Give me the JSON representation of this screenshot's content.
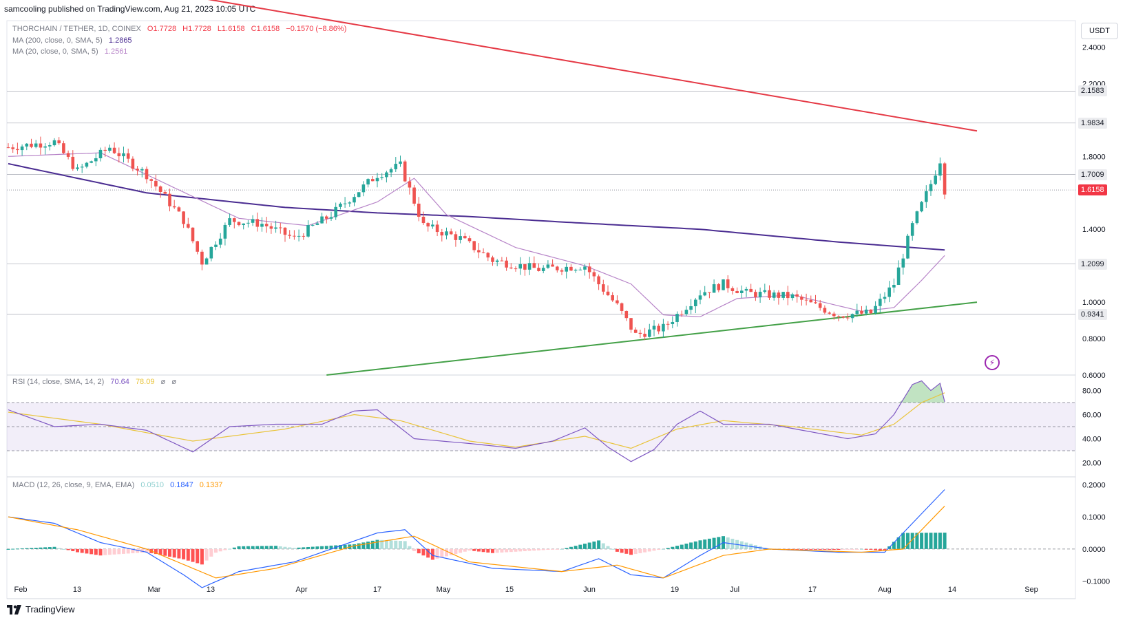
{
  "header": {
    "published_by": "samcooling published on TradingView.com, Aug 21, 2023 10:05 UTC"
  },
  "legend": {
    "symbol": "THORCHAIN / TETHER, 1D, COINEX",
    "ohlc": {
      "open": "O1.7728",
      "high": "H1.7728",
      "low": "L1.6158",
      "close": "C1.6158",
      "change": "−0.1570 (−8.86%)"
    },
    "ma200": {
      "label": "MA (200, close, 0, SMA, 5)",
      "value": "1.2865"
    },
    "ma20": {
      "label": "MA (20, close, 0, SMA, 5)",
      "value": "1.2561"
    }
  },
  "currency_button": "USDT",
  "price_axis": {
    "ticks": [
      "2.4000",
      "2.2000",
      "1.8000",
      "1.4000",
      "1.0000",
      "0.8000",
      "0.6000"
    ],
    "markers": [
      {
        "label": "2.1583",
        "style": "box"
      },
      {
        "label": "1.9834",
        "style": "box"
      },
      {
        "label": "1.7009",
        "style": "box"
      },
      {
        "label": "1.6158",
        "style": "current"
      },
      {
        "label": "1.2099",
        "style": "box"
      },
      {
        "label": "0.9341",
        "style": "box"
      }
    ]
  },
  "rsi": {
    "label": "RSI (14, close, SMA, 14, 2)",
    "value": "70.64",
    "sma": "78.09",
    "extra1": "ø",
    "extra2": "ø",
    "ticks": [
      "80.00",
      "60.00",
      "40.00",
      "20.00"
    ]
  },
  "macd": {
    "label": "MACD (12, 26, close, 9, EMA, EMA)",
    "hist": "0.0510",
    "macd": "0.1847",
    "signal": "0.1337",
    "ticks": [
      "0.2000",
      "0.1000",
      "0.0000",
      "−0.1000"
    ]
  },
  "time_axis": [
    "Feb",
    "13",
    "Mar",
    "13",
    "Apr",
    "17",
    "May",
    "15",
    "Jun",
    "19",
    "Jul",
    "17",
    "Aug",
    "14",
    "Sep"
  ],
  "footer": {
    "brand": "TradingView"
  },
  "colors": {
    "up": "#26a69a",
    "down": "#ef5350",
    "ma200": "#4a2c91",
    "ma20": "#b784c8",
    "resistance": "#e53945",
    "support": "#43a047"
  },
  "chart_data": {
    "type": "candlestick",
    "symbol": "THORCHAIN / TETHER",
    "interval": "1D",
    "x_range": [
      "2023-02-01",
      "2023-08-21"
    ],
    "y_range": [
      0.6,
      2.5
    ],
    "price_keypoints": [
      {
        "i": 0,
        "p": 1.85
      },
      {
        "i": 10,
        "p": 1.88
      },
      {
        "i": 15,
        "p": 1.72
      },
      {
        "i": 22,
        "p": 1.85
      },
      {
        "i": 30,
        "p": 1.7
      },
      {
        "i": 38,
        "p": 1.45
      },
      {
        "i": 42,
        "p": 1.22
      },
      {
        "i": 48,
        "p": 1.45
      },
      {
        "i": 55,
        "p": 1.43
      },
      {
        "i": 62,
        "p": 1.35
      },
      {
        "i": 70,
        "p": 1.48
      },
      {
        "i": 80,
        "p": 1.7
      },
      {
        "i": 85,
        "p": 1.75
      },
      {
        "i": 90,
        "p": 1.42
      },
      {
        "i": 98,
        "p": 1.35
      },
      {
        "i": 105,
        "p": 1.23
      },
      {
        "i": 115,
        "p": 1.18
      },
      {
        "i": 125,
        "p": 1.2
      },
      {
        "i": 128,
        "p": 1.1
      },
      {
        "i": 132,
        "p": 0.98
      },
      {
        "i": 136,
        "p": 0.82
      },
      {
        "i": 142,
        "p": 0.86
      },
      {
        "i": 150,
        "p": 1.05
      },
      {
        "i": 155,
        "p": 1.1
      },
      {
        "i": 160,
        "p": 1.05
      },
      {
        "i": 170,
        "p": 1.03
      },
      {
        "i": 180,
        "p": 0.93
      },
      {
        "i": 187,
        "p": 0.94
      },
      {
        "i": 192,
        "p": 1.1
      },
      {
        "i": 196,
        "p": 1.42
      },
      {
        "i": 200,
        "p": 1.65
      },
      {
        "i": 202,
        "p": 1.78
      },
      {
        "i": 203,
        "p": 1.6158
      }
    ],
    "ma200_keypoints": [
      {
        "i": 0,
        "p": 1.76
      },
      {
        "i": 30,
        "p": 1.6
      },
      {
        "i": 60,
        "p": 1.52
      },
      {
        "i": 80,
        "p": 1.49
      },
      {
        "i": 100,
        "p": 1.47
      },
      {
        "i": 120,
        "p": 1.44
      },
      {
        "i": 150,
        "p": 1.4
      },
      {
        "i": 180,
        "p": 1.33
      },
      {
        "i": 203,
        "p": 1.2865
      }
    ],
    "ma20_keypoints": [
      {
        "i": 0,
        "p": 1.8
      },
      {
        "i": 20,
        "p": 1.82
      },
      {
        "i": 30,
        "p": 1.7
      },
      {
        "i": 40,
        "p": 1.58
      },
      {
        "i": 50,
        "p": 1.46
      },
      {
        "i": 65,
        "p": 1.42
      },
      {
        "i": 80,
        "p": 1.55
      },
      {
        "i": 88,
        "p": 1.68
      },
      {
        "i": 95,
        "p": 1.48
      },
      {
        "i": 110,
        "p": 1.3
      },
      {
        "i": 125,
        "p": 1.2
      },
      {
        "i": 135,
        "p": 1.1
      },
      {
        "i": 142,
        "p": 0.93
      },
      {
        "i": 150,
        "p": 0.92
      },
      {
        "i": 158,
        "p": 1.02
      },
      {
        "i": 170,
        "p": 1.04
      },
      {
        "i": 185,
        "p": 0.95
      },
      {
        "i": 192,
        "p": 0.97
      },
      {
        "i": 198,
        "p": 1.12
      },
      {
        "i": 203,
        "p": 1.2561
      }
    ],
    "resistance_line": {
      "from": {
        "i": 0,
        "p": 2.85
      },
      "to": {
        "i": 210,
        "p": 1.94
      }
    },
    "support_line": {
      "from": {
        "i": 69,
        "p": 0.6
      },
      "to": {
        "i": 210,
        "p": 1.0
      }
    },
    "rsi_series": {
      "range": [
        10,
        90
      ],
      "keypoints": [
        {
          "i": 0,
          "v": 64
        },
        {
          "i": 10,
          "v": 50
        },
        {
          "i": 20,
          "v": 52
        },
        {
          "i": 30,
          "v": 47
        },
        {
          "i": 40,
          "v": 29
        },
        {
          "i": 48,
          "v": 50
        },
        {
          "i": 58,
          "v": 52
        },
        {
          "i": 68,
          "v": 52
        },
        {
          "i": 75,
          "v": 63
        },
        {
          "i": 80,
          "v": 64
        },
        {
          "i": 88,
          "v": 40
        },
        {
          "i": 100,
          "v": 36
        },
        {
          "i": 110,
          "v": 32
        },
        {
          "i": 118,
          "v": 38
        },
        {
          "i": 125,
          "v": 49
        },
        {
          "i": 130,
          "v": 33
        },
        {
          "i": 135,
          "v": 21
        },
        {
          "i": 140,
          "v": 31
        },
        {
          "i": 145,
          "v": 52
        },
        {
          "i": 150,
          "v": 63
        },
        {
          "i": 155,
          "v": 52
        },
        {
          "i": 165,
          "v": 52
        },
        {
          "i": 175,
          "v": 45
        },
        {
          "i": 182,
          "v": 40
        },
        {
          "i": 188,
          "v": 44
        },
        {
          "i": 192,
          "v": 60
        },
        {
          "i": 196,
          "v": 85
        },
        {
          "i": 198,
          "v": 88
        },
        {
          "i": 200,
          "v": 80
        },
        {
          "i": 202,
          "v": 86
        },
        {
          "i": 203,
          "v": 70.64
        }
      ],
      "sma_keypoints": [
        {
          "i": 0,
          "v": 62
        },
        {
          "i": 20,
          "v": 52
        },
        {
          "i": 40,
          "v": 38
        },
        {
          "i": 60,
          "v": 48
        },
        {
          "i": 75,
          "v": 60
        },
        {
          "i": 85,
          "v": 55
        },
        {
          "i": 100,
          "v": 38
        },
        {
          "i": 110,
          "v": 33
        },
        {
          "i": 125,
          "v": 42
        },
        {
          "i": 135,
          "v": 32
        },
        {
          "i": 145,
          "v": 48
        },
        {
          "i": 155,
          "v": 55
        },
        {
          "i": 170,
          "v": 50
        },
        {
          "i": 185,
          "v": 43
        },
        {
          "i": 192,
          "v": 52
        },
        {
          "i": 198,
          "v": 70
        },
        {
          "i": 203,
          "v": 78.09
        }
      ],
      "bands": [
        70,
        50,
        30
      ]
    },
    "macd_series": {
      "range": [
        -0.15,
        0.22
      ],
      "macd_keypoints": [
        {
          "i": 0,
          "v": 0.1
        },
        {
          "i": 10,
          "v": 0.08
        },
        {
          "i": 20,
          "v": 0.02
        },
        {
          "i": 30,
          "v": -0.01
        },
        {
          "i": 38,
          "v": -0.08
        },
        {
          "i": 42,
          "v": -0.12
        },
        {
          "i": 50,
          "v": -0.07
        },
        {
          "i": 62,
          "v": -0.04
        },
        {
          "i": 72,
          "v": 0.01
        },
        {
          "i": 80,
          "v": 0.05
        },
        {
          "i": 86,
          "v": 0.06
        },
        {
          "i": 92,
          "v": -0.02
        },
        {
          "i": 105,
          "v": -0.06
        },
        {
          "i": 120,
          "v": -0.07
        },
        {
          "i": 128,
          "v": -0.03
        },
        {
          "i": 135,
          "v": -0.08
        },
        {
          "i": 142,
          "v": -0.09
        },
        {
          "i": 150,
          "v": -0.02
        },
        {
          "i": 155,
          "v": 0.02
        },
        {
          "i": 165,
          "v": 0.0
        },
        {
          "i": 180,
          "v": -0.01
        },
        {
          "i": 190,
          "v": -0.01
        },
        {
          "i": 196,
          "v": 0.08
        },
        {
          "i": 203,
          "v": 0.1847
        }
      ],
      "signal_keypoints": [
        {
          "i": 0,
          "v": 0.1
        },
        {
          "i": 15,
          "v": 0.06
        },
        {
          "i": 30,
          "v": 0.0
        },
        {
          "i": 45,
          "v": -0.09
        },
        {
          "i": 58,
          "v": -0.06
        },
        {
          "i": 75,
          "v": 0.01
        },
        {
          "i": 88,
          "v": 0.04
        },
        {
          "i": 100,
          "v": -0.04
        },
        {
          "i": 120,
          "v": -0.07
        },
        {
          "i": 132,
          "v": -0.05
        },
        {
          "i": 142,
          "v": -0.09
        },
        {
          "i": 155,
          "v": -0.02
        },
        {
          "i": 165,
          "v": 0.0
        },
        {
          "i": 185,
          "v": -0.01
        },
        {
          "i": 194,
          "v": 0.0
        },
        {
          "i": 203,
          "v": 0.1337
        }
      ]
    }
  }
}
